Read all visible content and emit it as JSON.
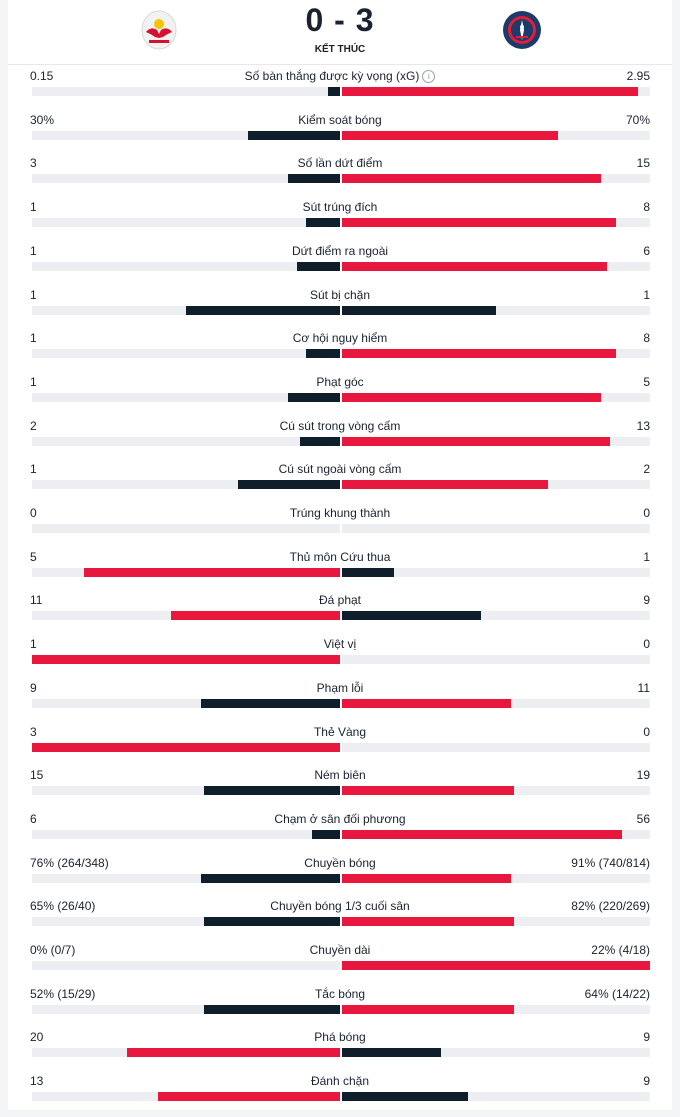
{
  "match": {
    "score": "0 - 3",
    "status": "KẾT THÚC",
    "home_logo": "red-bull-logo",
    "away_logo": "psg-logo"
  },
  "colors": {
    "leader": "#e8173d",
    "trailer": "#0e1e2a",
    "track": "#eceef1"
  },
  "stats": [
    {
      "name": "Số bàn thắng được kỳ vọng (xG)",
      "home": "0.15",
      "away": "2.95",
      "home_frac": 0.04,
      "away_frac": 0.96,
      "home_lead": false,
      "away_lead": true,
      "info": "ⓘ"
    },
    {
      "name": "Kiểm soát bóng",
      "home": "30%",
      "away": "70%",
      "home_frac": 0.3,
      "away_frac": 0.7,
      "home_lead": false,
      "away_lead": true
    },
    {
      "name": "Số lần dứt điểm",
      "home": "3",
      "away": "15",
      "home_frac": 0.17,
      "away_frac": 0.84,
      "home_lead": false,
      "away_lead": true
    },
    {
      "name": "Sút trúng đích",
      "home": "1",
      "away": "8",
      "home_frac": 0.11,
      "away_frac": 0.89,
      "home_lead": false,
      "away_lead": true
    },
    {
      "name": "Dứt điểm ra ngoài",
      "home": "1",
      "away": "6",
      "home_frac": 0.14,
      "away_frac": 0.86,
      "home_lead": false,
      "away_lead": true
    },
    {
      "name": "Sút bị chặn",
      "home": "1",
      "away": "1",
      "home_frac": 0.5,
      "away_frac": 0.5,
      "home_lead": false,
      "away_lead": false
    },
    {
      "name": "Cơ hội nguy hiểm",
      "home": "1",
      "away": "8",
      "home_frac": 0.11,
      "away_frac": 0.89,
      "home_lead": false,
      "away_lead": true
    },
    {
      "name": "Phạt góc",
      "home": "1",
      "away": "5",
      "home_frac": 0.17,
      "away_frac": 0.84,
      "home_lead": false,
      "away_lead": true
    },
    {
      "name": "Cú sút trong vòng cấm",
      "home": "2",
      "away": "13",
      "home_frac": 0.13,
      "away_frac": 0.87,
      "home_lead": false,
      "away_lead": true
    },
    {
      "name": "Cú sút ngoài vòng cấm",
      "home": "1",
      "away": "2",
      "home_frac": 0.33,
      "away_frac": 0.67,
      "home_lead": false,
      "away_lead": true
    },
    {
      "name": "Trúng khung thành",
      "home": "0",
      "away": "0",
      "home_frac": 0,
      "away_frac": 0,
      "home_lead": false,
      "away_lead": false
    },
    {
      "name": "Thủ môn Cứu thua",
      "home": "5",
      "away": "1",
      "home_frac": 0.83,
      "away_frac": 0.17,
      "home_lead": true,
      "away_lead": false
    },
    {
      "name": "Đá phạt",
      "home": "11",
      "away": "9",
      "home_frac": 0.55,
      "away_frac": 0.45,
      "home_lead": true,
      "away_lead": false
    },
    {
      "name": "Việt vị",
      "home": "1",
      "away": "0",
      "home_frac": 1.0,
      "away_frac": 0,
      "home_lead": true,
      "away_lead": false
    },
    {
      "name": "Phạm lỗi",
      "home": "9",
      "away": "11",
      "home_frac": 0.45,
      "away_frac": 0.55,
      "home_lead": false,
      "away_lead": true
    },
    {
      "name": "Thẻ Vàng",
      "home": "3",
      "away": "0",
      "home_frac": 1.0,
      "away_frac": 0,
      "home_lead": true,
      "away_lead": false
    },
    {
      "name": "Ném biên",
      "home": "15",
      "away": "19",
      "home_frac": 0.44,
      "away_frac": 0.56,
      "home_lead": false,
      "away_lead": true
    },
    {
      "name": "Chạm ở sân đối phương",
      "home": "6",
      "away": "56",
      "home_frac": 0.09,
      "away_frac": 0.91,
      "home_lead": false,
      "away_lead": true
    },
    {
      "name": "Chuyền bóng",
      "home": "76% (264/348)",
      "away": "91% (740/814)",
      "home_frac": 0.45,
      "away_frac": 0.55,
      "home_lead": false,
      "away_lead": true
    },
    {
      "name": "Chuyền bóng 1/3 cuối sân",
      "home": "65% (26/40)",
      "away": "82% (220/269)",
      "home_frac": 0.44,
      "away_frac": 0.56,
      "home_lead": false,
      "away_lead": true
    },
    {
      "name": "Chuyền dài",
      "home": "0% (0/7)",
      "away": "22% (4/18)",
      "home_frac": 0,
      "away_frac": 1.0,
      "home_lead": false,
      "away_lead": true
    },
    {
      "name": "Tắc bóng",
      "home": "52% (15/29)",
      "away": "64% (14/22)",
      "home_frac": 0.44,
      "away_frac": 0.56,
      "home_lead": false,
      "away_lead": true
    },
    {
      "name": "Phá bóng",
      "home": "20",
      "away": "9",
      "home_frac": 0.69,
      "away_frac": 0.32,
      "home_lead": true,
      "away_lead": false
    },
    {
      "name": "Đánh chặn",
      "home": "13",
      "away": "9",
      "home_frac": 0.59,
      "away_frac": 0.41,
      "home_lead": true,
      "away_lead": false
    }
  ]
}
